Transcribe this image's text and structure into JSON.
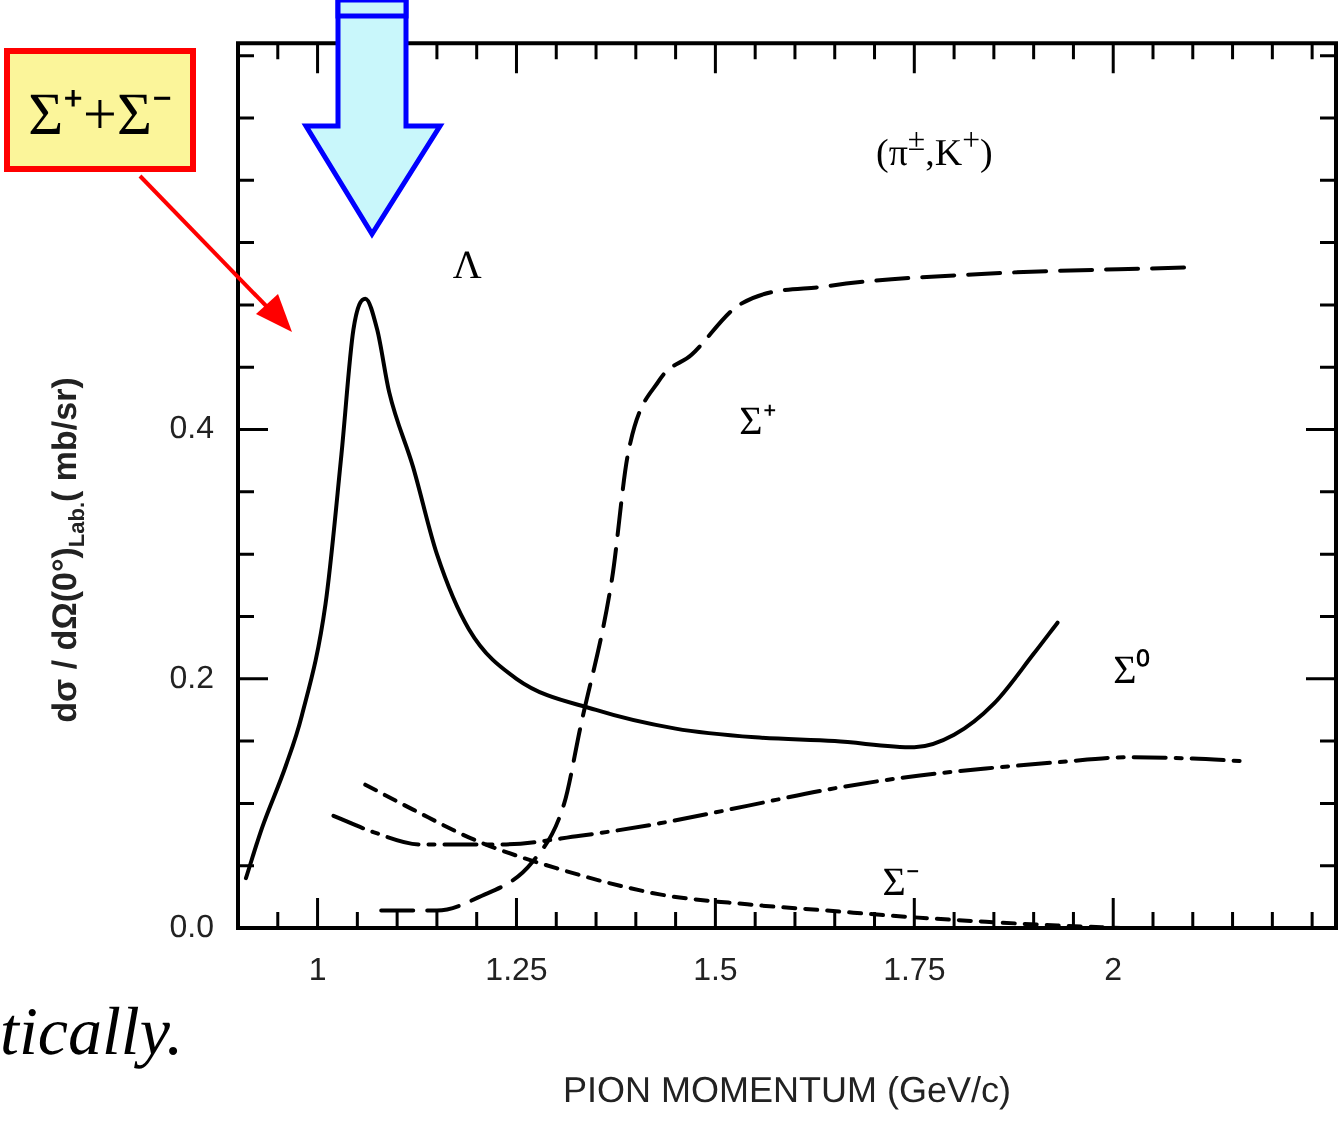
{
  "chart_data": {
    "type": "line",
    "xlabel": "PION MOMENTUM (GeV/c)",
    "ylabel": "dσ / dΩ(0°)$_{Lab.}$( mb/sr)",
    "annotations": [
      "(π$^{±}$,K$^{+}$)",
      "Σ⁺+Σ⁻",
      "tically."
    ],
    "xlim": [
      0.9,
      2.28
    ],
    "ylim": [
      0,
      0.71
    ],
    "xticks": [
      {
        "value": 0.95,
        "label": null
      },
      1,
      {
        "value": 1.05,
        "label": null
      },
      {
        "value": 1.1,
        "label": null
      },
      {
        "value": 1.15,
        "label": null
      },
      {
        "value": 1.2,
        "label": null
      },
      {
        "value": 1.25,
        "label": "1.25"
      },
      {
        "value": 1.3,
        "label": null
      },
      {
        "value": 1.35,
        "label": null
      },
      {
        "value": 1.4,
        "label": null
      },
      {
        "value": 1.45,
        "label": null
      },
      {
        "value": 1.5,
        "label": "1.5"
      },
      {
        "value": 1.55,
        "label": null
      },
      {
        "value": 1.6,
        "label": null
      },
      {
        "value": 1.65,
        "label": null
      },
      {
        "value": 1.7,
        "label": null
      },
      {
        "value": 1.75,
        "label": "1.75"
      },
      {
        "value": 1.8,
        "label": null
      },
      {
        "value": 1.85,
        "label": null
      },
      {
        "value": 1.9,
        "label": null
      },
      {
        "value": 1.95,
        "label": null
      },
      2,
      {
        "value": 2.05,
        "label": null
      },
      {
        "value": 2.1,
        "label": null
      },
      {
        "value": 2.15,
        "label": null
      },
      {
        "value": 2.2,
        "label": null
      },
      {
        "value": 2.25,
        "label": null
      }
    ],
    "yticks": [
      {
        "value": 0,
        "label": "0.0"
      },
      {
        "value": 0.05,
        "label": null
      },
      {
        "value": 0.1,
        "label": null
      },
      {
        "value": 0.15,
        "label": null
      },
      {
        "value": 0.2,
        "label": "0.2"
      },
      {
        "value": 0.25,
        "label": null
      },
      {
        "value": 0.3,
        "label": null
      },
      {
        "value": 0.35,
        "label": null
      },
      {
        "value": 0.4,
        "label": "0.4"
      },
      {
        "value": 0.45,
        "label": null
      },
      {
        "value": 0.5,
        "label": null
      },
      {
        "value": 0.55,
        "label": null
      },
      {
        "value": 0.6,
        "label": null
      },
      {
        "value": 0.65,
        "label": null
      },
      {
        "value": 0.7,
        "label": null
      }
    ],
    "grid": false,
    "legend": false,
    "marker": "none",
    "series": [
      {
        "name": "Λ",
        "color": "#000000",
        "line_style": "solid",
        "x": [
          0.91,
          0.93,
          0.96,
          0.98,
          1.01,
          1.03,
          1.045,
          1.06,
          1.075,
          1.09,
          1.12,
          1.15,
          1.19,
          1.25,
          1.35,
          1.45,
          1.55,
          1.65,
          1.75,
          1.8,
          1.85,
          1.9,
          1.93
        ],
        "values": [
          0.04,
          0.08,
          0.13,
          0.17,
          0.26,
          0.38,
          0.48,
          0.505,
          0.48,
          0.43,
          0.37,
          0.3,
          0.24,
          0.2,
          0.175,
          0.16,
          0.153,
          0.15,
          0.145,
          0.155,
          0.18,
          0.22,
          0.245
        ]
      },
      {
        "name": "Σ⁺",
        "color": "#000000",
        "line_style": "dashed",
        "x": [
          1.08,
          1.15,
          1.2,
          1.27,
          1.31,
          1.33,
          1.37,
          1.39,
          1.43,
          1.47,
          1.53,
          1.64,
          1.84,
          2.09
        ],
        "values": [
          0.014,
          0.014,
          0.024,
          0.053,
          0.1,
          0.16,
          0.28,
          0.38,
          0.44,
          0.46,
          0.5,
          0.515,
          0.525,
          0.53
        ]
      },
      {
        "name": "Σ⁰",
        "color": "#000000",
        "line_style": "dashdot",
        "x": [
          1.02,
          1.07,
          1.13,
          1.23,
          1.33,
          1.43,
          1.54,
          1.64,
          1.74,
          1.84,
          1.93,
          2.02,
          2.1,
          2.16
        ],
        "values": [
          0.09,
          0.077,
          0.067,
          0.067,
          0.074,
          0.084,
          0.098,
          0.111,
          0.121,
          0.128,
          0.133,
          0.137,
          0.136,
          0.134
        ]
      },
      {
        "name": "Σ⁻",
        "color": "#000000",
        "line_style": "dotted",
        "x": [
          1.06,
          1.12,
          1.2,
          1.3,
          1.43,
          1.54,
          1.64,
          1.74,
          1.84,
          1.93,
          2.01
        ],
        "values": [
          0.115,
          0.095,
          0.07,
          0.048,
          0.027,
          0.019,
          0.014,
          0.009,
          0.005,
          0.002,
          0.0
        ]
      }
    ]
  }
}
